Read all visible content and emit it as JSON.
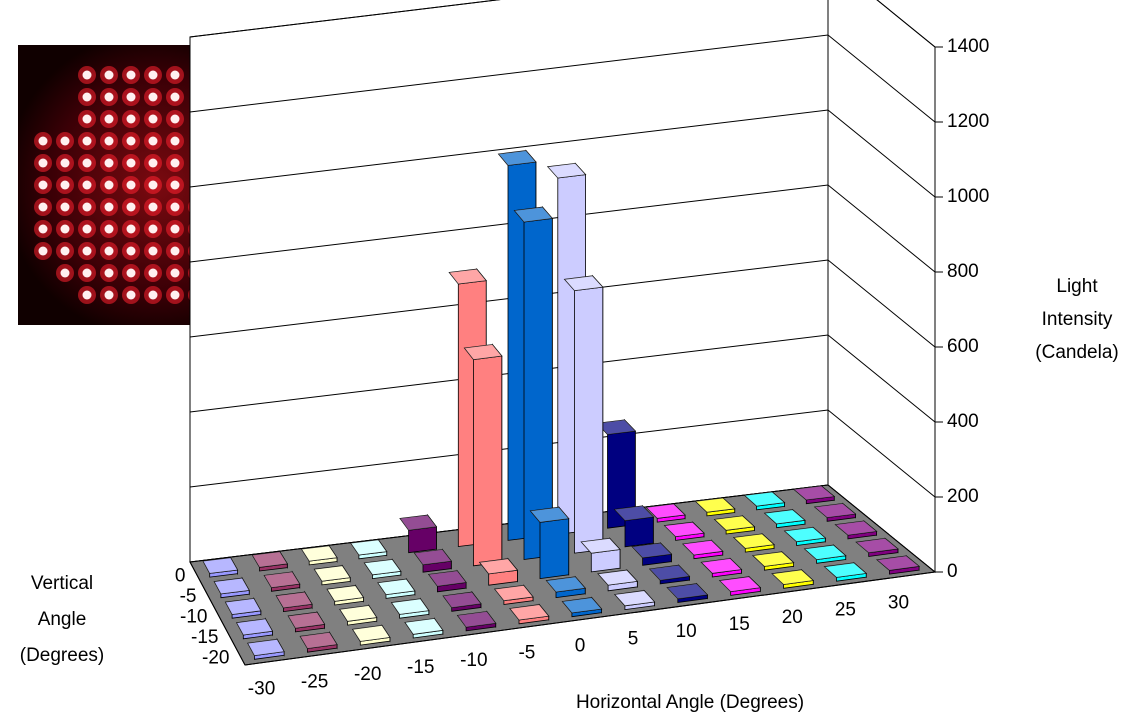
{
  "chart_data": {
    "type": "bar3d",
    "x_label": "Horizontal Angle (Degrees)",
    "y_label": [
      "Vertical",
      "Angle",
      "(Degrees)"
    ],
    "z_label": [
      "Light",
      "Intensity",
      "(Candela)"
    ],
    "categories": [
      "0",
      "-5",
      "-10",
      "-15",
      "-20"
    ],
    "series": [
      {
        "name": "-30",
        "color": "#9999ff",
        "values": [
          10,
          10,
          10,
          10,
          10
        ]
      },
      {
        "name": "-25",
        "color": "#993366",
        "values": [
          10,
          10,
          10,
          10,
          10
        ]
      },
      {
        "name": "-20",
        "color": "#ffffcc",
        "values": [
          10,
          10,
          10,
          10,
          10
        ]
      },
      {
        "name": "-15",
        "color": "#ccffff",
        "values": [
          10,
          10,
          10,
          10,
          10
        ]
      },
      {
        "name": "-10",
        "color": "#660066",
        "values": [
          60,
          20,
          15,
          10,
          10
        ]
      },
      {
        "name": "-5",
        "color": "#ff8080",
        "values": [
          700,
          550,
          30,
          10,
          10
        ]
      },
      {
        "name": "0",
        "color": "#0066cc",
        "values": [
          1000,
          900,
          150,
          15,
          10
        ]
      },
      {
        "name": "5",
        "color": "#ccccff",
        "values": [
          950,
          700,
          50,
          15,
          10
        ]
      },
      {
        "name": "10",
        "color": "#000080",
        "values": [
          250,
          70,
          20,
          10,
          10
        ]
      },
      {
        "name": "15",
        "color": "#ff00ff",
        "values": [
          10,
          10,
          10,
          10,
          10
        ]
      },
      {
        "name": "20",
        "color": "#ffff00",
        "values": [
          10,
          10,
          10,
          10,
          10
        ]
      },
      {
        "name": "25",
        "color": "#00ffff",
        "values": [
          10,
          10,
          10,
          10,
          10
        ]
      },
      {
        "name": "30",
        "color": "#800080",
        "values": [
          10,
          10,
          10,
          10,
          10
        ]
      }
    ],
    "ylim": [
      0,
      1400
    ],
    "yticks": [
      0,
      200,
      400,
      600,
      800,
      1000,
      1200,
      1400
    ],
    "grid": true
  }
}
